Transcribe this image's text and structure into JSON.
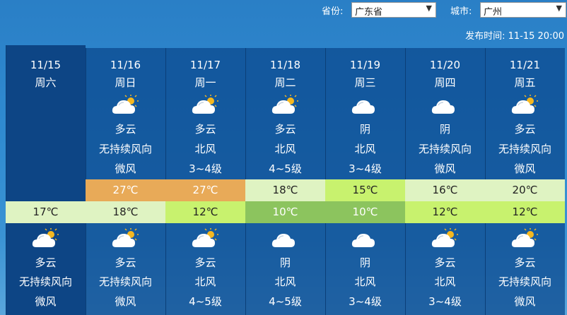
{
  "header": {
    "province_label": "省份:",
    "province_value": "广东省",
    "city_label": "城市:",
    "city_value": "广州",
    "publish": "发布时间: 11-15 20:00"
  },
  "colors": {
    "hot": "#e8aa58",
    "mild": "#dff3c2",
    "cool": "#c8f26e",
    "cold": "#8cc45e"
  },
  "days": [
    {
      "date": "11/15",
      "week": "周六",
      "day_icon": "",
      "day_weather": "",
      "day_wind_dir": "",
      "day_wind_level": "",
      "high": "",
      "high_color": "",
      "low": "17℃",
      "low_color": "#dff3c2",
      "low_text": "#222",
      "night_icon": "partly-cloudy-icon",
      "night_weather": "多云",
      "night_wind_dir": "无持续风向",
      "night_wind_level": "微风"
    },
    {
      "date": "11/16",
      "week": "周日",
      "day_icon": "partly-cloudy-icon",
      "day_weather": "多云",
      "day_wind_dir": "无持续风向",
      "day_wind_level": "微风",
      "high": "27℃",
      "high_color": "#e8aa58",
      "high_text": "#fff",
      "low": "18℃",
      "low_color": "#dff3c2",
      "low_text": "#222",
      "night_icon": "partly-cloudy-icon",
      "night_weather": "多云",
      "night_wind_dir": "无持续风向",
      "night_wind_level": "微风"
    },
    {
      "date": "11/17",
      "week": "周一",
      "day_icon": "partly-cloudy-icon",
      "day_weather": "多云",
      "day_wind_dir": "北风",
      "day_wind_level": "3~4级",
      "high": "27℃",
      "high_color": "#e8aa58",
      "high_text": "#fff",
      "low": "12℃",
      "low_color": "#c8f26e",
      "low_text": "#222",
      "night_icon": "partly-cloudy-icon",
      "night_weather": "多云",
      "night_wind_dir": "北风",
      "night_wind_level": "4~5级"
    },
    {
      "date": "11/18",
      "week": "周二",
      "day_icon": "partly-cloudy-icon",
      "day_weather": "多云",
      "day_wind_dir": "北风",
      "day_wind_level": "4~5级",
      "high": "18℃",
      "high_color": "#dff3c2",
      "high_text": "#222",
      "low": "10℃",
      "low_color": "#8cc45e",
      "low_text": "#fff",
      "night_icon": "overcast-icon",
      "night_weather": "阴",
      "night_wind_dir": "北风",
      "night_wind_level": "4~5级"
    },
    {
      "date": "11/19",
      "week": "周三",
      "day_icon": "overcast-icon",
      "day_weather": "阴",
      "day_wind_dir": "北风",
      "day_wind_level": "3~4级",
      "high": "15℃",
      "high_color": "#c8f26e",
      "high_text": "#222",
      "low": "10℃",
      "low_color": "#8cc45e",
      "low_text": "#fff",
      "night_icon": "overcast-icon",
      "night_weather": "阴",
      "night_wind_dir": "北风",
      "night_wind_level": "3~4级"
    },
    {
      "date": "11/20",
      "week": "周四",
      "day_icon": "overcast-icon",
      "day_weather": "阴",
      "day_wind_dir": "无持续风向",
      "day_wind_level": "微风",
      "high": "16℃",
      "high_color": "#dff3c2",
      "high_text": "#222",
      "low": "12℃",
      "low_color": "#c8f26e",
      "low_text": "#222",
      "night_icon": "partly-cloudy-icon",
      "night_weather": "多云",
      "night_wind_dir": "北风",
      "night_wind_level": "3~4级"
    },
    {
      "date": "11/21",
      "week": "周五",
      "day_icon": "partly-cloudy-icon",
      "day_weather": "多云",
      "day_wind_dir": "无持续风向",
      "day_wind_level": "微风",
      "high": "20℃",
      "high_color": "#dff3c2",
      "high_text": "#222",
      "low": "12℃",
      "low_color": "#c8f26e",
      "low_text": "#222",
      "night_icon": "partly-cloudy-icon",
      "night_weather": "多云",
      "night_wind_dir": "无持续风向",
      "night_wind_level": "微风"
    }
  ]
}
